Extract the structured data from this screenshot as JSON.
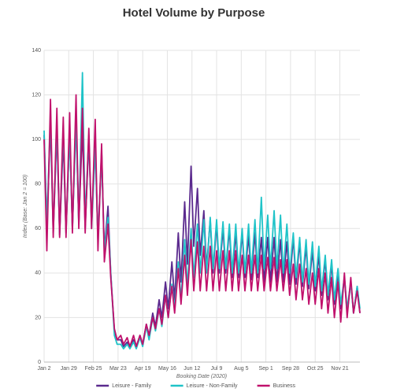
{
  "chart_data": {
    "type": "line",
    "title": "Hotel Volume by Purpose",
    "xlabel": "Booking Date (2020)",
    "ylabel": "Index (Base: Jan 2 = 100)",
    "x": [
      0,
      3,
      7,
      10,
      14,
      17,
      21,
      24,
      28,
      31,
      35,
      38,
      42,
      45,
      49,
      52,
      56,
      59,
      63,
      66,
      70,
      73,
      77,
      80,
      84,
      87,
      91,
      94,
      98,
      101,
      105,
      108,
      112,
      115,
      119,
      122,
      126,
      129,
      133,
      136,
      140,
      143,
      147,
      150,
      154,
      157,
      161,
      164,
      168,
      171,
      175,
      178,
      182,
      185,
      189,
      192,
      196,
      199,
      203,
      206,
      210,
      213,
      217,
      220,
      224,
      227,
      231,
      234,
      238,
      241,
      245,
      248,
      252,
      255,
      259,
      262,
      266,
      269,
      273,
      276,
      280,
      283,
      287,
      290,
      294,
      297,
      301,
      304,
      308,
      311,
      315,
      318,
      322,
      325,
      329,
      332,
      336,
      339,
      343,
      346
    ],
    "xlim": [
      0,
      346
    ],
    "xticks": [
      {
        "value": 0,
        "label": "Jan 2"
      },
      {
        "value": 27,
        "label": "Jan 29"
      },
      {
        "value": 54,
        "label": "Feb 25"
      },
      {
        "value": 81,
        "label": "Mar 23"
      },
      {
        "value": 108,
        "label": "Apr 19"
      },
      {
        "value": 135,
        "label": "May 16"
      },
      {
        "value": 162,
        "label": "Jun 12"
      },
      {
        "value": 189,
        "label": "Jul 9"
      },
      {
        "value": 216,
        "label": "Aug 5"
      },
      {
        "value": 243,
        "label": "Sep 1"
      },
      {
        "value": 270,
        "label": "Sep 28"
      },
      {
        "value": 297,
        "label": "Oct 25"
      },
      {
        "value": 324,
        "label": "Nov 21"
      }
    ],
    "ylim": [
      0,
      140
    ],
    "yticks": [
      0,
      20,
      40,
      60,
      80,
      100,
      120,
      140
    ],
    "grid": true,
    "legend": "bottom",
    "series": [
      {
        "name": "Leisure - Family",
        "color": "#5b2a8e",
        "values": [
          102,
          60,
          108,
          58,
          104,
          57,
          100,
          58,
          103,
          60,
          110,
          62,
          105,
          60,
          100,
          62,
          98,
          55,
          95,
          50,
          70,
          40,
          14,
          10,
          10,
          7,
          9,
          7,
          10,
          7,
          12,
          8,
          17,
          12,
          22,
          16,
          28,
          20,
          36,
          24,
          45,
          28,
          58,
          36,
          72,
          44,
          88,
          52,
          78,
          48,
          68,
          42,
          64,
          40,
          62,
          40,
          60,
          40,
          60,
          38,
          58,
          38,
          58,
          38,
          57,
          37,
          58,
          38,
          56,
          36,
          56,
          36,
          56,
          36,
          55,
          36,
          54,
          35,
          56,
          35,
          54,
          34,
          52,
          33,
          50,
          32,
          48,
          30,
          46,
          28,
          44,
          26,
          40,
          24,
          38,
          22,
          36,
          22,
          34,
          22
        ]
      },
      {
        "name": "Leisure - Non-Family",
        "color": "#1fc3c8",
        "values": [
          104,
          62,
          110,
          60,
          106,
          58,
          104,
          60,
          102,
          60,
          108,
          62,
          130,
          64,
          102,
          60,
          96,
          55,
          92,
          50,
          65,
          40,
          12,
          8,
          8,
          6,
          8,
          6,
          9,
          6,
          11,
          7,
          16,
          10,
          20,
          14,
          24,
          16,
          30,
          20,
          35,
          24,
          45,
          28,
          55,
          34,
          60,
          38,
          62,
          40,
          64,
          40,
          65,
          42,
          64,
          42,
          63,
          42,
          62,
          40,
          62,
          40,
          60,
          40,
          62,
          40,
          64,
          40,
          74,
          42,
          66,
          42,
          68,
          42,
          66,
          40,
          62,
          40,
          58,
          38,
          56,
          36,
          55,
          35,
          54,
          34,
          52,
          32,
          48,
          30,
          46,
          28,
          42,
          26,
          38,
          24,
          36,
          22,
          34,
          24
        ]
      },
      {
        "name": "Business",
        "color": "#c0116c",
        "values": [
          100,
          50,
          118,
          56,
          114,
          56,
          110,
          56,
          112,
          58,
          120,
          60,
          114,
          58,
          105,
          60,
          109,
          50,
          98,
          45,
          62,
          38,
          15,
          10,
          12,
          8,
          11,
          7,
          12,
          7,
          12,
          8,
          17,
          12,
          20,
          15,
          24,
          17,
          30,
          20,
          34,
          22,
          42,
          26,
          48,
          30,
          55,
          32,
          54,
          32,
          52,
          32,
          52,
          32,
          50,
          32,
          50,
          32,
          50,
          32,
          50,
          32,
          48,
          32,
          48,
          32,
          48,
          32,
          48,
          32,
          47,
          32,
          47,
          32,
          46,
          32,
          46,
          30,
          44,
          28,
          44,
          28,
          42,
          26,
          40,
          26,
          42,
          24,
          40,
          22,
          38,
          20,
          36,
          18,
          40,
          20,
          38,
          22,
          32,
          22
        ]
      }
    ]
  }
}
